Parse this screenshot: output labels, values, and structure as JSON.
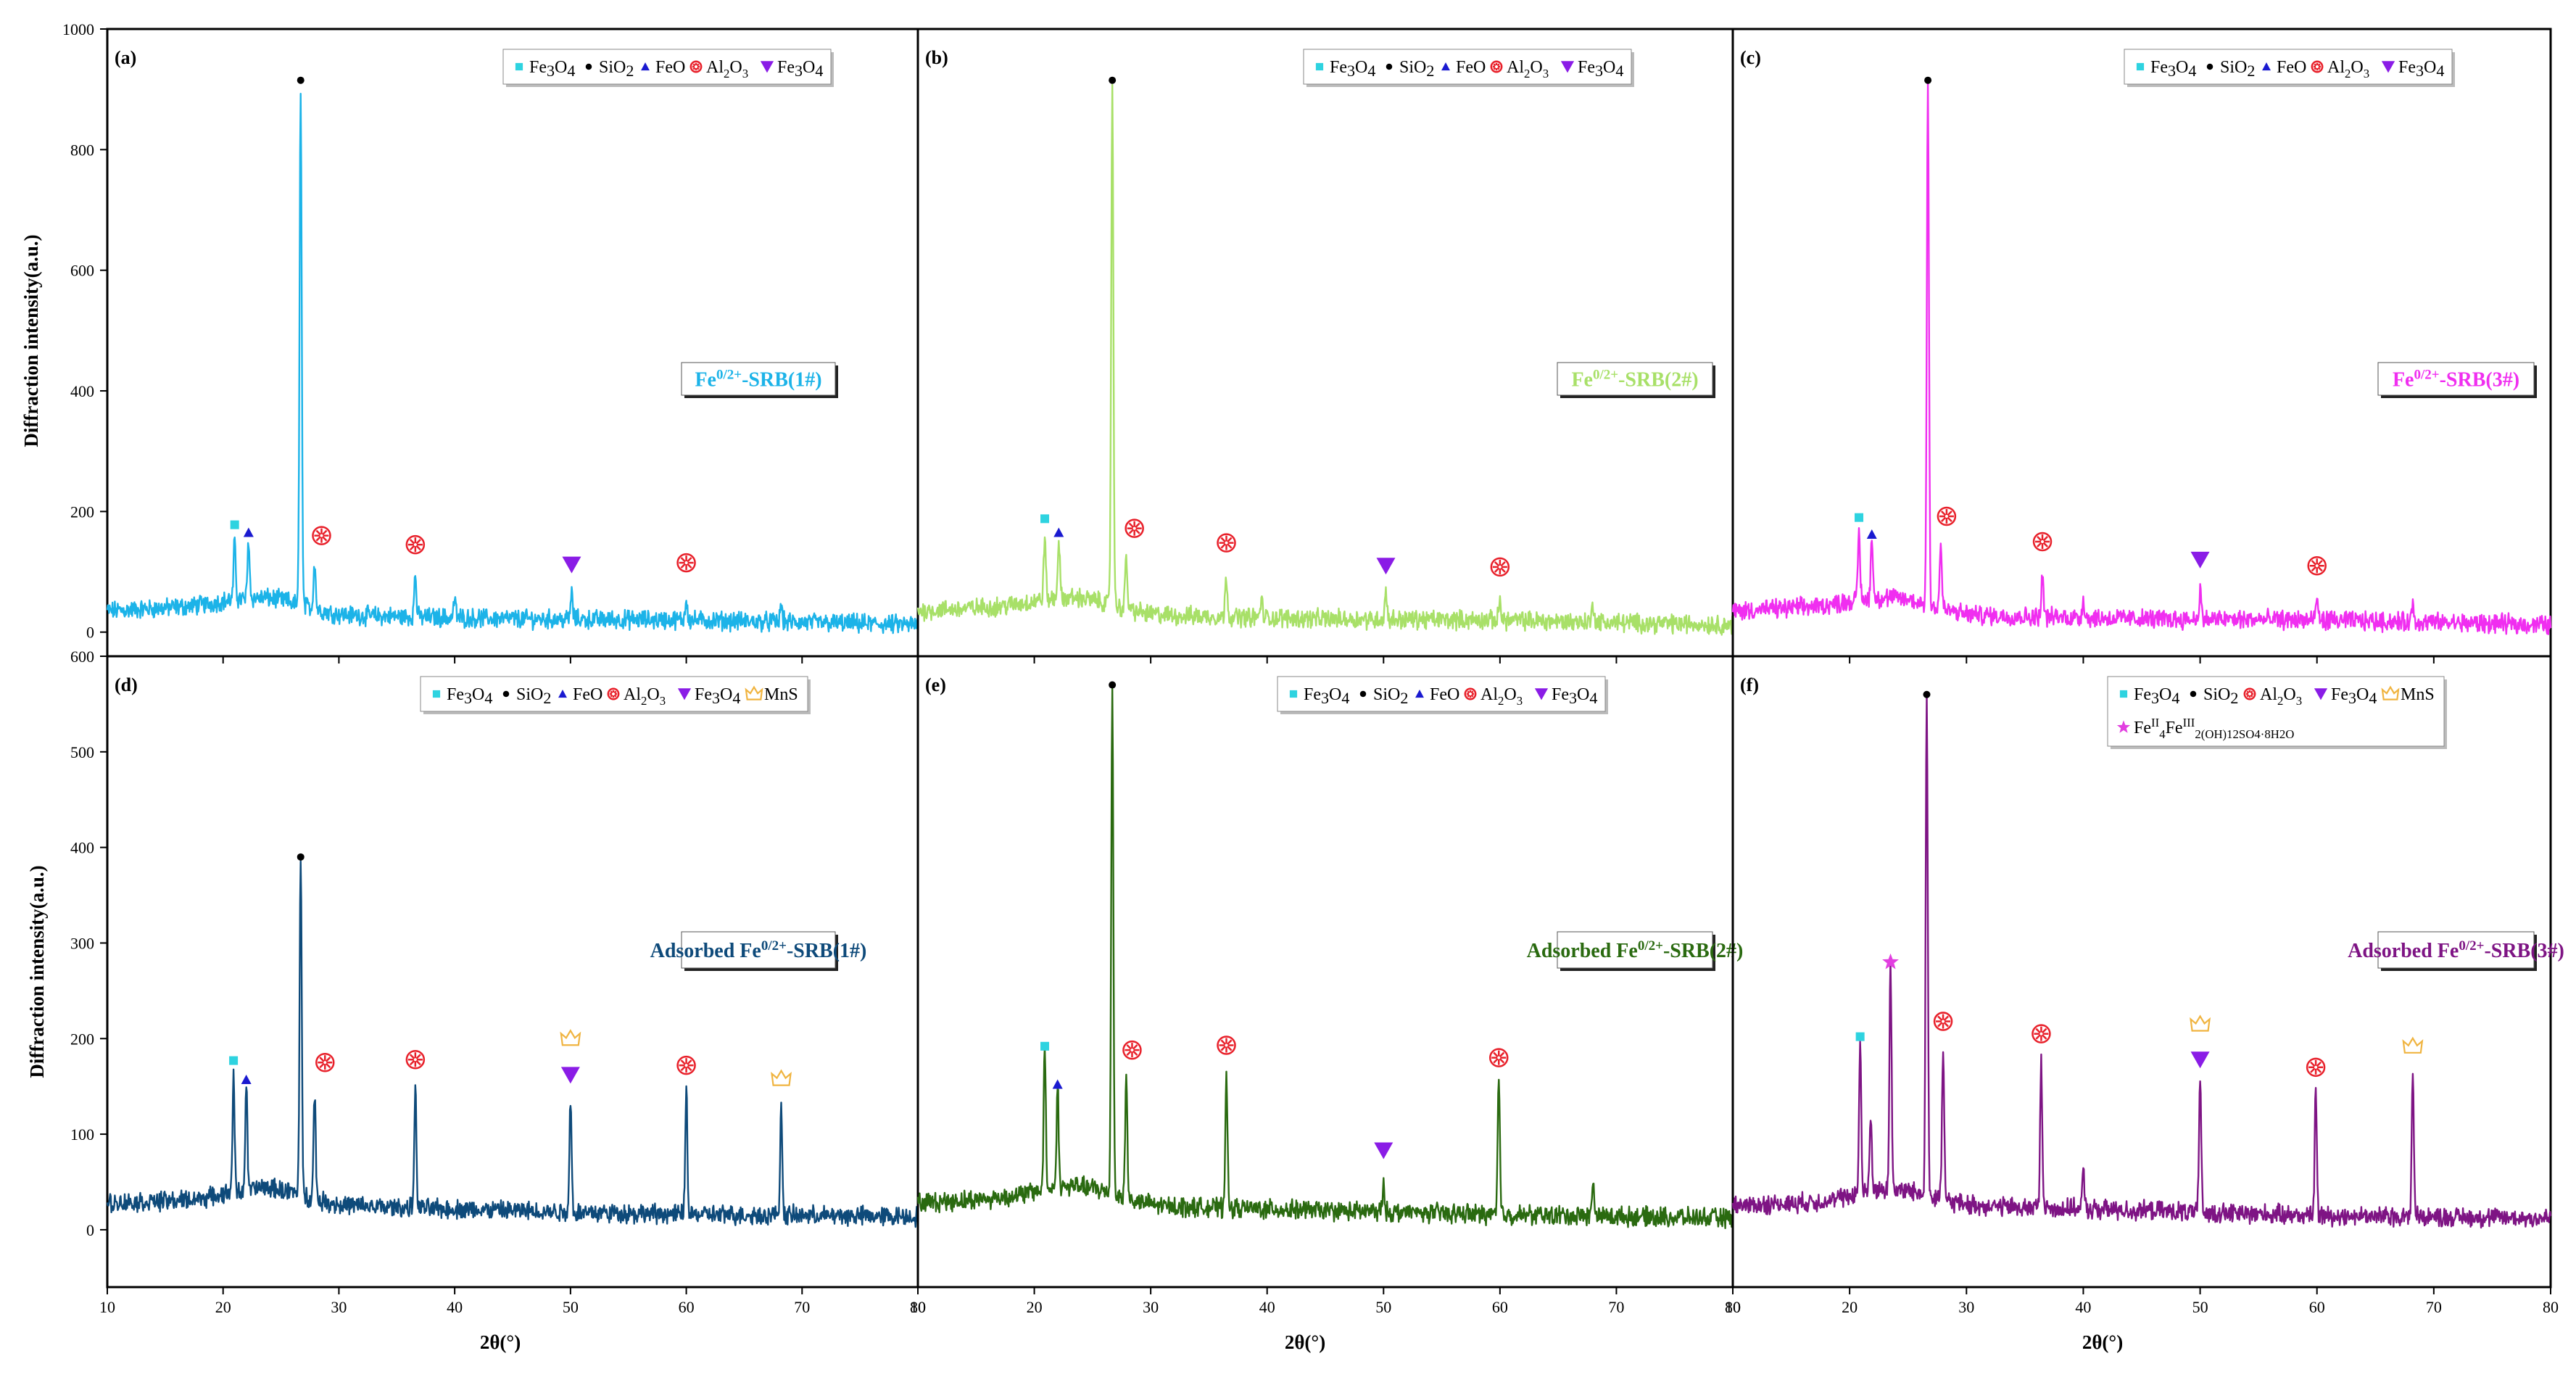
{
  "figure": {
    "ylabel": "Diffraction intensity(a.u.)",
    "xlabel": "2θ(°)"
  },
  "colors": {
    "Fe3O4_square": "#2ed3e0",
    "SiO2": "#000000",
    "FeO": "#1a1ad0",
    "Al2O3": "#e8202a",
    "Fe3O4_triangle": "#8a1ce6",
    "MnS": "#f0b440",
    "green_rust": "#e23ee0"
  },
  "chart_data": [
    {
      "type": "line",
      "panel_label": "(a)",
      "sample_label": "Fe0/2+-SRB(1#)",
      "color": "#1cb3e8",
      "xlim": [
        10,
        80
      ],
      "ylim": [
        -40,
        1000
      ],
      "xticks": [
        10,
        20,
        30,
        40,
        50,
        60,
        70,
        80
      ],
      "yticks": [
        0,
        200,
        400,
        600,
        800,
        1000
      ],
      "baseline": [
        [
          10,
          35
        ],
        [
          20,
          45
        ],
        [
          30,
          28
        ],
        [
          45,
          22
        ],
        [
          60,
          20
        ],
        [
          80,
          12
        ]
      ],
      "peaks": [
        {
          "x": 21.0,
          "y": 140,
          "marker": "Fe3O4_square",
          "my": 178
        },
        {
          "x": 22.2,
          "y": 140,
          "marker": "FeO",
          "my": 165
        },
        {
          "x": 26.7,
          "y": 893,
          "marker": "SiO2",
          "my": 915
        },
        {
          "x": 27.9,
          "y": 112
        },
        {
          "x": 28.5,
          "marker": "Al2O3",
          "my": 160
        },
        {
          "x": 36.6,
          "y": 95,
          "marker": "Al2O3",
          "my": 145
        },
        {
          "x": 40.0,
          "y": 55
        },
        {
          "x": 50.1,
          "y": 65,
          "marker": "Fe3O4_triangle",
          "my": 112
        },
        {
          "x": 60.0,
          "y": 55,
          "marker": "Al2O3",
          "my": 115
        },
        {
          "x": 68.2,
          "y": 45
        }
      ],
      "legend": [
        "Fe3O4",
        "SiO2",
        "FeO",
        "Al2O3",
        "Fe3O4"
      ]
    },
    {
      "type": "line",
      "panel_label": "(b)",
      "sample_label": "Fe0/2+-SRB(2#)",
      "color": "#a8e068",
      "xlim": [
        10,
        80
      ],
      "ylim": [
        -40,
        1000
      ],
      "xticks": [
        10,
        20,
        30,
        40,
        50,
        60,
        70,
        80
      ],
      "yticks": [
        0,
        200,
        400,
        600,
        800,
        1000
      ],
      "baseline": [
        [
          10,
          35
        ],
        [
          20,
          45
        ],
        [
          30,
          28
        ],
        [
          45,
          22
        ],
        [
          60,
          20
        ],
        [
          80,
          12
        ]
      ],
      "peaks": [
        {
          "x": 20.9,
          "y": 150,
          "marker": "Fe3O4_square",
          "my": 188
        },
        {
          "x": 22.1,
          "y": 140,
          "marker": "FeO",
          "my": 165
        },
        {
          "x": 26.7,
          "y": 893,
          "marker": "SiO2",
          "my": 915
        },
        {
          "x": 27.9,
          "y": 118
        },
        {
          "x": 28.6,
          "marker": "Al2O3",
          "my": 172
        },
        {
          "x": 36.5,
          "y": 95,
          "marker": "Al2O3",
          "my": 148
        },
        {
          "x": 39.5,
          "y": 55
        },
        {
          "x": 50.2,
          "y": 68,
          "marker": "Fe3O4_triangle",
          "my": 110
        },
        {
          "x": 60.0,
          "y": 55,
          "marker": "Al2O3",
          "my": 108
        },
        {
          "x": 68.0,
          "y": 48
        }
      ],
      "legend": [
        "Fe3O4",
        "SiO2",
        "FeO",
        "Al2O3",
        "Fe3O4"
      ]
    },
    {
      "type": "line",
      "panel_label": "(c)",
      "sample_label": "Fe0/2+-SRB(3#)",
      "color": "#f02ef0",
      "xlim": [
        10,
        80
      ],
      "ylim": [
        -40,
        1000
      ],
      "xticks": [
        10,
        20,
        30,
        40,
        50,
        60,
        70,
        80
      ],
      "yticks": [
        0,
        200,
        400,
        600,
        800,
        1000
      ],
      "baseline": [
        [
          10,
          35
        ],
        [
          20,
          45
        ],
        [
          30,
          28
        ],
        [
          45,
          22
        ],
        [
          60,
          20
        ],
        [
          80,
          12
        ]
      ],
      "peaks": [
        {
          "x": 20.8,
          "y": 160,
          "marker": "Fe3O4_square",
          "my": 190
        },
        {
          "x": 21.9,
          "y": 145,
          "marker": "FeO",
          "my": 162
        },
        {
          "x": 26.7,
          "y": 893,
          "marker": "SiO2",
          "my": 915
        },
        {
          "x": 27.8,
          "y": 140
        },
        {
          "x": 28.3,
          "marker": "Al2O3",
          "my": 192
        },
        {
          "x": 36.5,
          "y": 95,
          "marker": "Al2O3",
          "my": 150
        },
        {
          "x": 40.0,
          "y": 55
        },
        {
          "x": 50.0,
          "y": 70,
          "marker": "Fe3O4_triangle",
          "my": 120
        },
        {
          "x": 60.0,
          "y": 58,
          "marker": "Al2O3",
          "my": 110
        },
        {
          "x": 68.2,
          "y": 45
        }
      ],
      "legend": [
        "Fe3O4",
        "SiO2",
        "FeO",
        "Al2O3",
        "Fe3O4"
      ]
    },
    {
      "type": "line",
      "panel_label": "(d)",
      "sample_label": "Adsorbed Fe0/2+-SRB(1#)",
      "color": "#0e4a7a",
      "xlim": [
        10,
        80
      ],
      "ylim": [
        -60,
        600
      ],
      "xticks": [
        10,
        20,
        30,
        40,
        50,
        60,
        70,
        80
      ],
      "yticks": [
        0,
        100,
        200,
        300,
        400,
        500,
        600
      ],
      "baseline": [
        [
          10,
          28
        ],
        [
          20,
          32
        ],
        [
          30,
          25
        ],
        [
          45,
          20
        ],
        [
          60,
          16
        ],
        [
          80,
          14
        ]
      ],
      "peaks": [
        {
          "x": 20.9,
          "y": 150,
          "marker": "Fe3O4_square",
          "my": 177
        },
        {
          "x": 22.0,
          "y": 138,
          "marker": "FeO",
          "my": 157
        },
        {
          "x": 26.7,
          "y": 380,
          "marker": "SiO2",
          "my": 390
        },
        {
          "x": 27.9,
          "y": 140
        },
        {
          "x": 28.8,
          "marker": "Al2O3",
          "my": 175
        },
        {
          "x": 36.6,
          "y": 148,
          "marker": "Al2O3",
          "my": 178
        },
        {
          "x": 50.0,
          "y": 138,
          "marker": "Fe3O4_triangle",
          "my": 162
        },
        {
          "x": 50.0,
          "marker": "MnS",
          "my": 200
        },
        {
          "x": 60.0,
          "y": 148,
          "marker": "Al2O3",
          "my": 172
        },
        {
          "x": 68.2,
          "y": 128,
          "marker": "MnS",
          "my": 158
        }
      ],
      "legend": [
        "Fe3O4",
        "SiO2",
        "FeO",
        "Al2O3",
        "Fe3O4",
        "MnS"
      ]
    },
    {
      "type": "line",
      "panel_label": "(e)",
      "sample_label": "Adsorbed Fe0/2+-SRB(2#)",
      "color": "#2a6a10",
      "xlim": [
        10,
        80
      ],
      "ylim": [
        -60,
        600
      ],
      "xticks": [
        10,
        20,
        30,
        40,
        50,
        60,
        70,
        80
      ],
      "yticks": [
        0,
        100,
        200,
        300,
        400,
        500,
        600
      ],
      "baseline": [
        [
          10,
          28
        ],
        [
          20,
          35
        ],
        [
          30,
          25
        ],
        [
          45,
          20
        ],
        [
          60,
          16
        ],
        [
          80,
          12
        ]
      ],
      "peaks": [
        {
          "x": 20.9,
          "y": 182,
          "marker": "Fe3O4_square",
          "my": 192
        },
        {
          "x": 22.0,
          "y": 140,
          "marker": "FeO",
          "my": 152
        },
        {
          "x": 26.7,
          "y": 553,
          "marker": "SiO2",
          "my": 570
        },
        {
          "x": 27.9,
          "y": 155
        },
        {
          "x": 28.4,
          "marker": "Al2O3",
          "my": 188
        },
        {
          "x": 36.5,
          "y": 165,
          "marker": "Al2O3",
          "my": 193
        },
        {
          "x": 50.0,
          "y": 45,
          "marker": "Fe3O4_triangle",
          "my": 83
        },
        {
          "x": 59.9,
          "y": 155,
          "marker": "Al2O3",
          "my": 180
        },
        {
          "x": 68.0,
          "y": 50
        }
      ],
      "legend": [
        "Fe3O4",
        "SiO2",
        "FeO",
        "Al2O3",
        "Fe3O4"
      ]
    },
    {
      "type": "line",
      "panel_label": "(f)",
      "sample_label": "Adsorbed Fe0/2+-SRB(3#)",
      "color": "#7e1484",
      "xlim": [
        10,
        80
      ],
      "ylim": [
        -60,
        600
      ],
      "xticks": [
        10,
        20,
        30,
        40,
        50,
        60,
        70,
        80
      ],
      "yticks": [
        0,
        100,
        200,
        300,
        400,
        500,
        600
      ],
      "baseline": [
        [
          10,
          25
        ],
        [
          20,
          30
        ],
        [
          30,
          25
        ],
        [
          45,
          20
        ],
        [
          60,
          15
        ],
        [
          80,
          12
        ]
      ],
      "peaks": [
        {
          "x": 20.9,
          "y": 185,
          "marker": "Fe3O4_square",
          "my": 202
        },
        {
          "x": 21.8,
          "y": 110
        },
        {
          "x": 23.5,
          "y": 262,
          "marker": "green_rust",
          "my": 280
        },
        {
          "x": 26.6,
          "y": 547,
          "marker": "SiO2",
          "my": 560
        },
        {
          "x": 28.0,
          "y": 185,
          "marker": "Al2O3",
          "my": 218
        },
        {
          "x": 36.4,
          "y": 175,
          "marker": "Al2O3",
          "my": 205
        },
        {
          "x": 40.0,
          "y": 60
        },
        {
          "x": 50.0,
          "y": 155,
          "marker": "Fe3O4_triangle",
          "my": 178
        },
        {
          "x": 50.0,
          "marker": "MnS",
          "my": 215
        },
        {
          "x": 59.9,
          "y": 145,
          "marker": "Al2O3",
          "my": 170
        },
        {
          "x": 68.2,
          "y": 160,
          "marker": "MnS",
          "my": 192
        }
      ],
      "legend": [
        "Fe3O4",
        "SiO2",
        "Al2O3",
        "Fe3O4",
        "MnS",
        "FeII4FeIII2(OH)12SO4·8H2O"
      ]
    }
  ]
}
